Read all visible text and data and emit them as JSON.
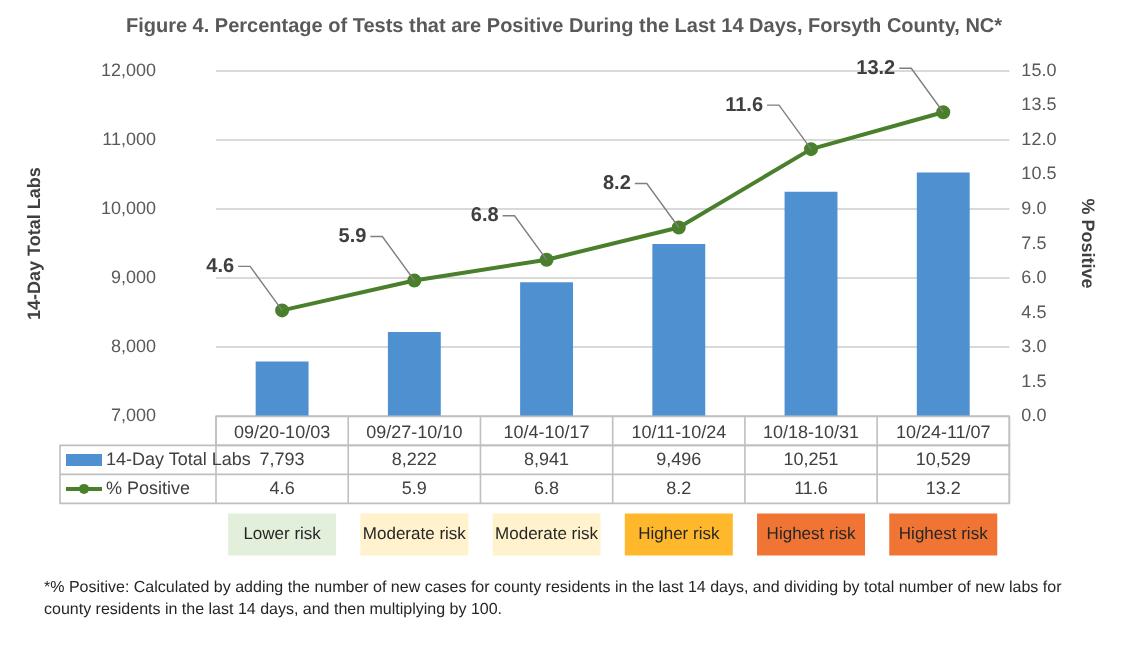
{
  "chart_data": {
    "type": "bar",
    "title": "Figure 4. Percentage of Tests that are Positive During the Last 14 Days, Forsyth County, NC*",
    "categories": [
      "09/20-10/03",
      "09/27-10/10",
      "10/4-10/17",
      "10/11-10/24",
      "10/18-10/31",
      "10/24-11/07"
    ],
    "series": [
      {
        "name": "14-Day Total Labs",
        "color": "#4f90d0",
        "values": [
          7793,
          8222,
          8941,
          9496,
          10251,
          10529
        ],
        "value_labels": [
          "7,793",
          "8,222",
          "8,941",
          "9,496",
          "10,251",
          "10,529"
        ]
      },
      {
        "name": "% Positive",
        "type": "line",
        "axis": "y2",
        "color": "#4a7f2c",
        "marker": "circle",
        "values": [
          4.6,
          5.9,
          6.8,
          8.2,
          11.6,
          13.2
        ],
        "value_labels": [
          "4.6",
          "5.9",
          "6.8",
          "8.2",
          "11.6",
          "13.2"
        ]
      }
    ],
    "ylabel": "14-Day Total Labs",
    "y2label": "% Positive",
    "ylim": [
      7000,
      12000
    ],
    "yticks": [
      {
        "value": 7000,
        "label": "7,000"
      },
      {
        "value": 8000,
        "label": "8,000"
      },
      {
        "value": 9000,
        "label": "9,000"
      },
      {
        "value": 10000,
        "label": "10,000"
      },
      {
        "value": 11000,
        "label": "11,000"
      },
      {
        "value": 12000,
        "label": "12,000"
      }
    ],
    "y2lim": [
      0,
      15
    ],
    "y2ticks": [
      {
        "value": 0,
        "label": "0.0"
      },
      {
        "value": 1.5,
        "label": "1.5"
      },
      {
        "value": 3,
        "label": "3.0"
      },
      {
        "value": 4.5,
        "label": "4.5"
      },
      {
        "value": 6,
        "label": "6.0"
      },
      {
        "value": 7.5,
        "label": "7.5"
      },
      {
        "value": 9,
        "label": "9.0"
      },
      {
        "value": 10.5,
        "label": "10.5"
      },
      {
        "value": 12,
        "label": "12.0"
      },
      {
        "value": 13.5,
        "label": "13.5"
      },
      {
        "value": 15,
        "label": "15.0"
      }
    ],
    "grid": "y",
    "legend": "bottom",
    "annotations": [
      "Lower risk",
      "Moderate risk",
      "Moderate risk",
      "Higher risk",
      "Highest risk",
      "Highest risk",
      "*% Positive: Calculated by adding the number of new cases for county residents in the last 14 days, and dividing by total number of new labs for county residents in the last 14 days, and then multiplying by 100."
    ]
  }
}
